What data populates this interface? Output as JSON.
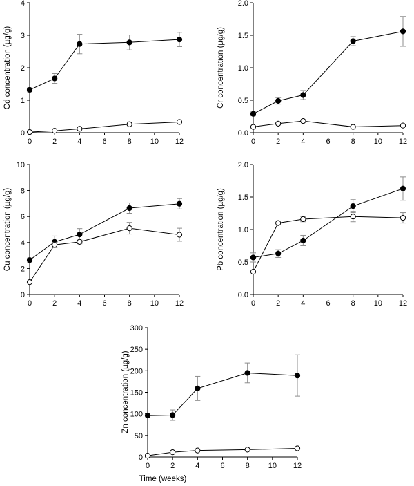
{
  "chart_data": [
    {
      "id": "cd",
      "type": "line",
      "xlabel": "",
      "ylabel": "Cd concentration (µg/g)",
      "xlim": [
        0,
        12
      ],
      "ylim": [
        0,
        4
      ],
      "xticks": [
        "0",
        "2",
        "4",
        "6",
        "8",
        "10",
        "12"
      ],
      "yticks": [
        "0",
        "1",
        "2",
        "3",
        "4"
      ],
      "grid": false,
      "series": [
        {
          "marker": "filled-circle",
          "x": [
            0,
            2,
            4,
            8,
            12
          ],
          "y": [
            1.32,
            1.67,
            2.73,
            2.78,
            2.87
          ],
          "err": [
            0.06,
            0.15,
            0.3,
            0.23,
            0.22
          ]
        },
        {
          "marker": "open-circle",
          "x": [
            0,
            2,
            4,
            8,
            12
          ],
          "y": [
            0.02,
            0.06,
            0.12,
            0.26,
            0.33
          ],
          "err": [
            0,
            0,
            0,
            0,
            0
          ]
        }
      ]
    },
    {
      "id": "cr",
      "type": "line",
      "xlabel": "",
      "ylabel": "Cr concentration (µg/g)",
      "xlim": [
        0,
        12
      ],
      "ylim": [
        0,
        2
      ],
      "xticks": [
        "0",
        "2",
        "4",
        "6",
        "8",
        "10",
        "12"
      ],
      "yticks": [
        "0.0",
        "0.5",
        "1.0",
        "1.5",
        "2.0"
      ],
      "grid": false,
      "series": [
        {
          "marker": "filled-circle",
          "x": [
            0,
            2,
            4,
            8,
            12
          ],
          "y": [
            0.29,
            0.49,
            0.58,
            1.41,
            1.56
          ],
          "err": [
            0.03,
            0.05,
            0.07,
            0.07,
            0.23
          ]
        },
        {
          "marker": "open-circle",
          "x": [
            0,
            2,
            4,
            8,
            12
          ],
          "y": [
            0.09,
            0.14,
            0.18,
            0.09,
            0.11
          ],
          "err": [
            0,
            0,
            0,
            0,
            0
          ]
        }
      ]
    },
    {
      "id": "cu",
      "type": "line",
      "xlabel": "",
      "ylabel": "Cu concentration (µg/g)",
      "xlim": [
        0,
        12
      ],
      "ylim": [
        0,
        10
      ],
      "xticks": [
        "0",
        "2",
        "4",
        "6",
        "8",
        "10",
        "12"
      ],
      "yticks": [
        "0",
        "2",
        "4",
        "6",
        "8",
        "10"
      ],
      "grid": false,
      "series": [
        {
          "marker": "filled-circle",
          "x": [
            0,
            2,
            4,
            8,
            12
          ],
          "y": [
            2.65,
            4.05,
            4.62,
            6.65,
            6.98
          ],
          "err": [
            0.15,
            0.45,
            0.45,
            0.4,
            0.4
          ]
        },
        {
          "marker": "open-circle",
          "x": [
            0,
            2,
            4,
            8,
            12
          ],
          "y": [
            0.95,
            3.82,
            4.05,
            5.1,
            4.6
          ],
          "err": [
            0,
            0.2,
            0.15,
            0.45,
            0.5
          ]
        }
      ]
    },
    {
      "id": "pb",
      "type": "line",
      "xlabel": "",
      "ylabel": "Pb concentration (µg/g)",
      "xlim": [
        0,
        12
      ],
      "ylim": [
        0,
        2
      ],
      "xticks": [
        "0",
        "2",
        "4",
        "6",
        "8",
        "10",
        "12"
      ],
      "yticks": [
        "0.0",
        "0.5",
        "1.0",
        "1.5",
        "2.0"
      ],
      "grid": false,
      "series": [
        {
          "marker": "filled-circle",
          "x": [
            0,
            2,
            4,
            8,
            12
          ],
          "y": [
            0.57,
            0.63,
            0.83,
            1.36,
            1.63
          ],
          "err": [
            0.07,
            0.06,
            0.08,
            0.1,
            0.18
          ]
        },
        {
          "marker": "open-circle",
          "x": [
            0,
            2,
            4,
            8,
            12
          ],
          "y": [
            0.35,
            1.1,
            1.16,
            1.2,
            1.18
          ],
          "err": [
            0,
            0,
            0.04,
            0.08,
            0.08
          ]
        }
      ]
    },
    {
      "id": "zn",
      "type": "line",
      "xlabel": "Time (weeks)",
      "ylabel": "Zn concentration (µg/g)",
      "xlim": [
        0,
        12
      ],
      "ylim": [
        0,
        300
      ],
      "xticks": [
        "0",
        "2",
        "4",
        "6",
        "8",
        "10",
        "12"
      ],
      "yticks": [
        "0",
        "50",
        "100",
        "150",
        "200",
        "250",
        "300"
      ],
      "grid": false,
      "series": [
        {
          "marker": "filled-circle",
          "x": [
            0,
            2,
            4,
            8,
            12
          ],
          "y": [
            96,
            97,
            159,
            195,
            189
          ],
          "err": [
            0,
            12,
            28,
            23,
            48
          ]
        },
        {
          "marker": "open-circle",
          "x": [
            0,
            2,
            4,
            8,
            12
          ],
          "y": [
            3,
            11,
            15,
            17,
            20
          ],
          "err": [
            0,
            0,
            0,
            0,
            0
          ]
        }
      ]
    }
  ]
}
